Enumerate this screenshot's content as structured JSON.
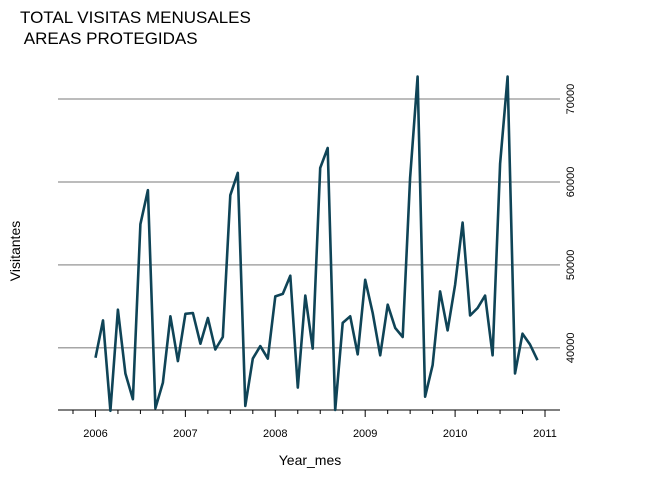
{
  "chart_data": {
    "type": "line",
    "title_lines": [
      "TOTAL VISITAS MENUSALES",
      " AREAS PROTEGIDAS"
    ],
    "xlabel": "Year_mes",
    "ylabel": "Visitantes",
    "x_ticks": [
      "2006",
      "2007",
      "2008",
      "2009",
      "2010",
      "2011"
    ],
    "y_ticks": [
      40000,
      50000,
      60000,
      70000
    ],
    "y_tick_labels": [
      "40000",
      "50000",
      "60000",
      "70000"
    ],
    "xlim": [
      "2005-08",
      "2011-03"
    ],
    "ylim": [
      32500,
      73500
    ],
    "grid": "horizontal",
    "y_axis_position": "right",
    "line_color": "#0f4457",
    "grid_color": "#a6a6a6",
    "series": [
      {
        "x": [
          "2006-01",
          "2006-02",
          "2006-03",
          "2006-04",
          "2006-05",
          "2006-06",
          "2006-07",
          "2006-08",
          "2006-09",
          "2006-10",
          "2006-11",
          "2006-12",
          "2007-01",
          "2007-02",
          "2007-03",
          "2007-04",
          "2007-05",
          "2007-06",
          "2007-07",
          "2007-08",
          "2007-09",
          "2007-10",
          "2007-11",
          "2007-12",
          "2008-01",
          "2008-02",
          "2008-03",
          "2008-04",
          "2008-05",
          "2008-06",
          "2008-07",
          "2008-08",
          "2008-09",
          "2008-10",
          "2008-11",
          "2008-12",
          "2009-01",
          "2009-02",
          "2009-03",
          "2009-04",
          "2009-05",
          "2009-06",
          "2009-07",
          "2009-08",
          "2009-09",
          "2009-10",
          "2009-11",
          "2009-12",
          "2010-01",
          "2010-02",
          "2010-03",
          "2010-04",
          "2010-05",
          "2010-06",
          "2010-07",
          "2010-08",
          "2010-09",
          "2010-10",
          "2010-11",
          "2010-12"
        ],
        "values": [
          38800,
          43300,
          32400,
          44600,
          36900,
          33800,
          54900,
          59000,
          32700,
          35800,
          43800,
          38400,
          44100,
          44200,
          40500,
          43600,
          39800,
          41300,
          58400,
          61100,
          33000,
          38700,
          40200,
          38700,
          46200,
          46500,
          48700,
          35200,
          46300,
          39900,
          61700,
          64100,
          32500,
          43000,
          43800,
          39200,
          48200,
          44200,
          39100,
          45200,
          42400,
          41300,
          60500,
          72700,
          34100,
          37900,
          46800,
          42100,
          47600,
          55100,
          43900,
          44800,
          46300,
          39100,
          62200,
          72700,
          36900,
          41700,
          40400,
          38500
        ]
      }
    ]
  }
}
